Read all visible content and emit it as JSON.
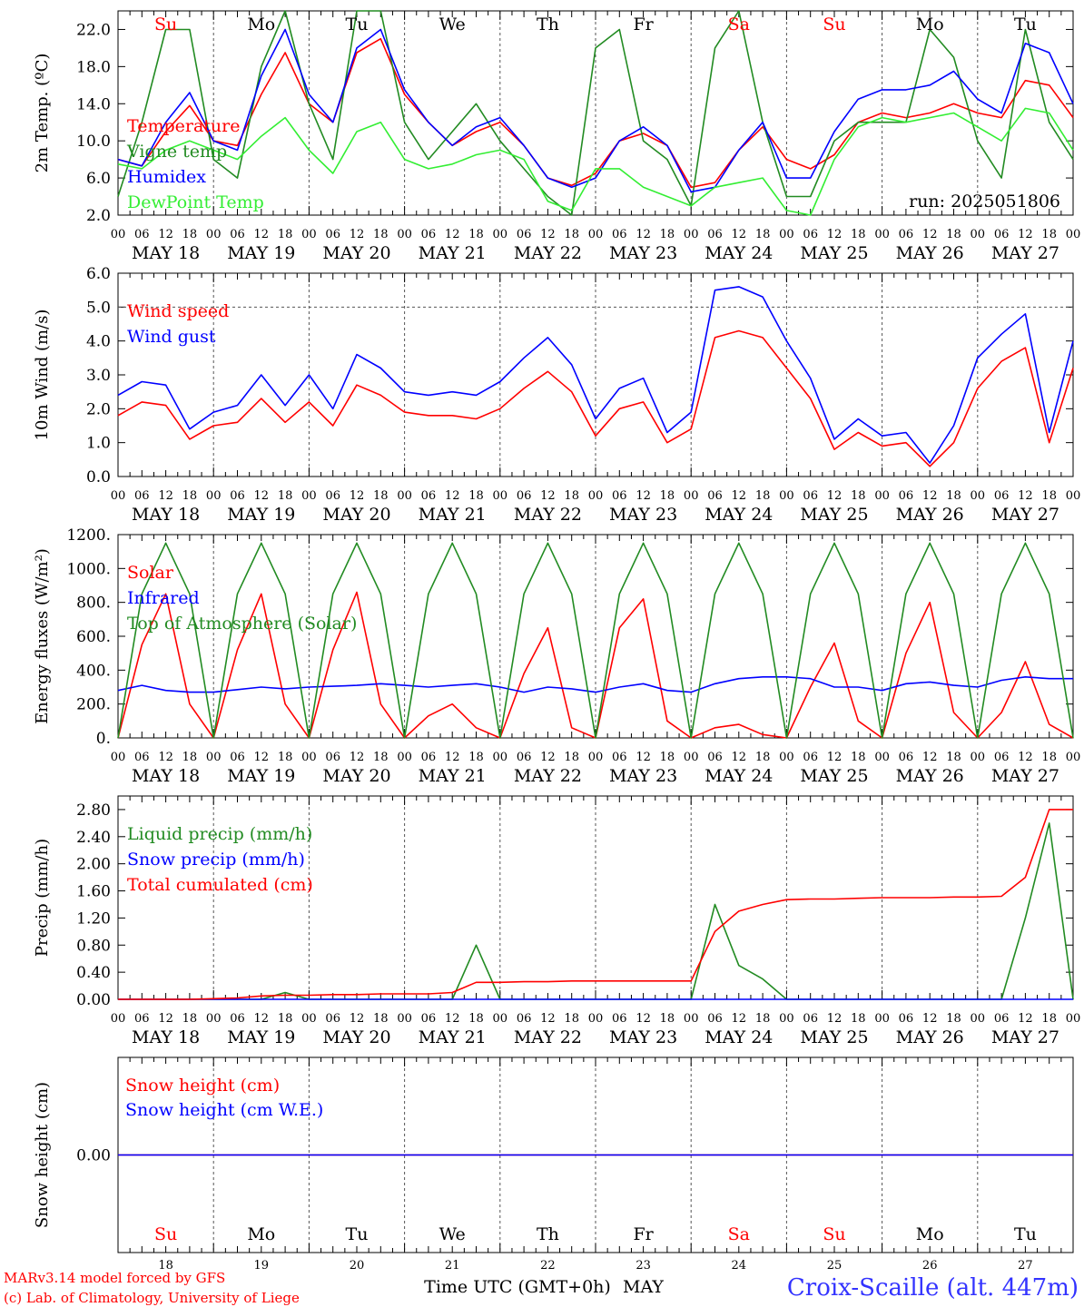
{
  "chart_data": [
    {
      "type": "line",
      "ylabel": "2m Temp. (ºC)",
      "ylim": [
        2,
        24
      ],
      "yticks": [
        "2.0",
        "6.0",
        "10.0",
        "14.0",
        "18.0",
        "22.0"
      ],
      "x": [
        0,
        6,
        12,
        18,
        24,
        30,
        36,
        42,
        48,
        54,
        60,
        66,
        72,
        78,
        84,
        90,
        96,
        102,
        108,
        114,
        120,
        126,
        132,
        138,
        144,
        150,
        156,
        162,
        168,
        174,
        180,
        186,
        192,
        198,
        204,
        210,
        216,
        222,
        228,
        234,
        240
      ],
      "series": [
        {
          "name": "Temperature",
          "color": "#ff0000",
          "values": [
            8,
            7.3,
            11,
            13.8,
            10,
            9.5,
            15,
            19.5,
            14,
            12,
            19.5,
            21,
            15,
            12,
            9.5,
            11,
            12,
            9.5,
            6,
            5.2,
            6.5,
            10,
            10.8,
            9.5,
            5,
            5.5,
            9,
            11.5,
            8,
            7,
            8.5,
            12,
            13,
            12.5,
            13,
            14,
            13,
            12.5,
            16.5,
            16,
            12.5
          ]
        },
        {
          "name": "Vigne temp",
          "color": "#228b22",
          "values": [
            4,
            12,
            22,
            22,
            8,
            6,
            18,
            24,
            14,
            8,
            24,
            24,
            12,
            8,
            11,
            14,
            10,
            7,
            4,
            2,
            20,
            22,
            10,
            8,
            3,
            20,
            24,
            12,
            4,
            4,
            10,
            12,
            12,
            12,
            22,
            19,
            10,
            6,
            22,
            12,
            8
          ]
        },
        {
          "name": "Humidex",
          "color": "#0000ff",
          "values": [
            8,
            7.3,
            12,
            15.2,
            10,
            9,
            17,
            22,
            15,
            12,
            20,
            22,
            15.5,
            12,
            9.5,
            11.5,
            12.5,
            9.5,
            6,
            5,
            6,
            10,
            11.5,
            9.5,
            4.5,
            5,
            9,
            12,
            6,
            6,
            11,
            14.5,
            15.5,
            15.5,
            16,
            17.5,
            14.5,
            13,
            20.5,
            19.5,
            14
          ]
        },
        {
          "name": "DewPoint Temp",
          "color": "#33ee33",
          "values": [
            7.5,
            7,
            9,
            10,
            9,
            8,
            10.5,
            12.5,
            9,
            6.5,
            11,
            12,
            8,
            7,
            7.5,
            8.5,
            9,
            8,
            3.5,
            2.5,
            7,
            7,
            5,
            4,
            3,
            5,
            5.5,
            6,
            2.5,
            2,
            8,
            11.5,
            12.5,
            12,
            12.5,
            13,
            11.5,
            10,
            13.5,
            13,
            9
          ]
        }
      ],
      "annotation": "run: 2025051806"
    },
    {
      "type": "line",
      "ylabel": "10m Wind (m/s)",
      "ylim": [
        0,
        6
      ],
      "yticks": [
        "0.0",
        "1.0",
        "2.0",
        "3.0",
        "4.0",
        "5.0",
        "6.0"
      ],
      "reference_line": 5,
      "x": [
        0,
        6,
        12,
        18,
        24,
        30,
        36,
        42,
        48,
        54,
        60,
        66,
        72,
        78,
        84,
        90,
        96,
        102,
        108,
        114,
        120,
        126,
        132,
        138,
        144,
        150,
        156,
        162,
        168,
        174,
        180,
        186,
        192,
        198,
        204,
        210,
        216,
        222,
        228,
        234,
        240
      ],
      "series": [
        {
          "name": "Wind speed",
          "color": "#ff0000",
          "values": [
            1.8,
            2.2,
            2.1,
            1.1,
            1.5,
            1.6,
            2.3,
            1.6,
            2.2,
            1.5,
            2.7,
            2.4,
            1.9,
            1.8,
            1.8,
            1.7,
            2.0,
            2.6,
            3.1,
            2.5,
            1.2,
            2.0,
            2.2,
            1.0,
            1.4,
            4.1,
            4.3,
            4.1,
            3.2,
            2.3,
            0.8,
            1.3,
            0.9,
            1.0,
            0.3,
            1.0,
            2.6,
            3.4,
            3.8,
            1.0,
            3.2
          ]
        },
        {
          "name": "Wind gust",
          "color": "#0000ff",
          "values": [
            2.4,
            2.8,
            2.7,
            1.4,
            1.9,
            2.1,
            3.0,
            2.1,
            3.0,
            2.0,
            3.6,
            3.2,
            2.5,
            2.4,
            2.5,
            2.4,
            2.8,
            3.5,
            4.1,
            3.3,
            1.7,
            2.6,
            2.9,
            1.3,
            1.9,
            5.5,
            5.6,
            5.3,
            4.0,
            2.9,
            1.1,
            1.7,
            1.2,
            1.3,
            0.4,
            1.5,
            3.5,
            4.2,
            4.8,
            1.3,
            4.0
          ]
        }
      ]
    },
    {
      "type": "line",
      "ylabel": "Energy fluxes (W/m²)",
      "ylim": [
        0,
        1200
      ],
      "yticks": [
        "0.",
        "200.",
        "400.",
        "600.",
        "800.",
        "1000.",
        "1200."
      ],
      "x": [
        0,
        6,
        12,
        18,
        24,
        30,
        36,
        42,
        48,
        54,
        60,
        66,
        72,
        78,
        84,
        90,
        96,
        102,
        108,
        114,
        120,
        126,
        132,
        138,
        144,
        150,
        156,
        162,
        168,
        174,
        180,
        186,
        192,
        198,
        204,
        210,
        216,
        222,
        228,
        234,
        240
      ],
      "series": [
        {
          "name": "Solar",
          "color": "#ff0000",
          "values": [
            0,
            550,
            850,
            200,
            0,
            520,
            850,
            200,
            0,
            520,
            860,
            200,
            0,
            130,
            200,
            60,
            0,
            380,
            650,
            60,
            0,
            650,
            820,
            100,
            0,
            60,
            80,
            20,
            0,
            300,
            560,
            100,
            0,
            500,
            800,
            150,
            0,
            150,
            450,
            80,
            0
          ]
        },
        {
          "name": "Infrared",
          "color": "#0000ff",
          "values": [
            280,
            310,
            280,
            270,
            270,
            285,
            300,
            290,
            300,
            305,
            310,
            320,
            310,
            300,
            310,
            320,
            300,
            270,
            300,
            290,
            270,
            300,
            320,
            280,
            270,
            320,
            350,
            360,
            360,
            350,
            300,
            300,
            280,
            320,
            330,
            310,
            300,
            340,
            360,
            350,
            350
          ]
        },
        {
          "name": "Top of Atmosphere (Solar)",
          "color": "#228b22",
          "values": [
            0,
            850,
            1150,
            850,
            0,
            850,
            1150,
            850,
            0,
            850,
            1150,
            850,
            0,
            850,
            1150,
            850,
            0,
            850,
            1150,
            850,
            0,
            850,
            1150,
            850,
            0,
            850,
            1150,
            850,
            0,
            850,
            1150,
            850,
            0,
            850,
            1150,
            850,
            0,
            850,
            1150,
            850,
            0
          ]
        }
      ]
    },
    {
      "type": "line",
      "ylabel": "Precip (mm/h)",
      "ylim": [
        0,
        3
      ],
      "yticks": [
        "0.00",
        "0.40",
        "0.80",
        "1.20",
        "1.60",
        "2.00",
        "2.40",
        "2.80"
      ],
      "x": [
        0,
        6,
        12,
        18,
        24,
        30,
        36,
        42,
        48,
        54,
        60,
        66,
        72,
        78,
        84,
        90,
        96,
        102,
        108,
        114,
        120,
        126,
        132,
        138,
        144,
        150,
        156,
        162,
        168,
        174,
        180,
        186,
        192,
        198,
        204,
        210,
        216,
        222,
        228,
        234,
        240
      ],
      "series": [
        {
          "name": "Liquid precip (mm/h)",
          "color": "#228b22",
          "values": [
            0,
            0,
            0,
            0,
            0,
            0,
            0,
            0.1,
            0,
            0,
            0,
            0,
            0,
            0,
            0,
            0.8,
            0,
            0,
            0,
            0,
            0,
            0,
            0,
            0,
            0,
            1.4,
            0.5,
            0.3,
            0,
            0,
            0,
            0,
            0,
            0,
            0,
            0,
            0,
            0,
            1.2,
            2.6,
            0
          ]
        },
        {
          "name": "Snow precip (mm/h)",
          "color": "#0000ff",
          "values": [
            0,
            0,
            0,
            0,
            0,
            0,
            0,
            0,
            0,
            0,
            0,
            0,
            0,
            0,
            0,
            0,
            0,
            0,
            0,
            0,
            0,
            0,
            0,
            0,
            0,
            0,
            0,
            0,
            0,
            0,
            0,
            0,
            0,
            0,
            0,
            0,
            0,
            0,
            0,
            0,
            0
          ]
        },
        {
          "name": "Total cumulated (cm)",
          "color": "#ff0000",
          "values": [
            0,
            0,
            0,
            0,
            0.01,
            0.02,
            0.05,
            0.06,
            0.06,
            0.07,
            0.07,
            0.08,
            0.08,
            0.08,
            0.1,
            0.25,
            0.25,
            0.26,
            0.26,
            0.27,
            0.27,
            0.27,
            0.27,
            0.27,
            0.27,
            1.0,
            1.3,
            1.4,
            1.47,
            1.48,
            1.48,
            1.49,
            1.5,
            1.5,
            1.5,
            1.51,
            1.51,
            1.52,
            1.8,
            2.8,
            2.8
          ]
        }
      ]
    },
    {
      "type": "line",
      "ylabel": "Snow height (cm)",
      "ylim": [
        -1,
        1
      ],
      "yticks": [
        "0.00"
      ],
      "x": [
        0,
        240
      ],
      "series": [
        {
          "name": "Snow height (cm)",
          "color": "#ff0000",
          "values": [
            0,
            0
          ]
        },
        {
          "name": "Snow height (cm W.E.)",
          "color": "#0000ff",
          "values": [
            0,
            0
          ]
        }
      ]
    }
  ],
  "axis": {
    "hour_labels": [
      "00",
      "06",
      "12",
      "18"
    ],
    "final_hour_label": "00",
    "dates": [
      "MAY 18",
      "MAY 19",
      "MAY 20",
      "MAY 21",
      "MAY 22",
      "MAY 23",
      "MAY 24",
      "MAY 25",
      "MAY 26",
      "MAY 27"
    ],
    "weekdays": [
      {
        "label": "Su",
        "color": "#ff0000"
      },
      {
        "label": "Mo",
        "color": "#000000"
      },
      {
        "label": "Tu",
        "color": "#000000"
      },
      {
        "label": "We",
        "color": "#000000"
      },
      {
        "label": "Th",
        "color": "#000000"
      },
      {
        "label": "Fr",
        "color": "#000000"
      },
      {
        "label": "Sa",
        "color": "#ff0000"
      },
      {
        "label": "Su",
        "color": "#ff0000"
      },
      {
        "label": "Mo",
        "color": "#000000"
      },
      {
        "label": "Tu",
        "color": "#000000"
      }
    ],
    "day_numbers": [
      "18",
      "19",
      "20",
      "21",
      "22",
      "23",
      "24",
      "25",
      "26",
      "27"
    ],
    "xlabel": "Time UTC (GMT+0h)",
    "month": "MAY"
  },
  "footer": {
    "credit_line1": "MARv3.14 model forced by GFS",
    "credit_line2": "(c) Lab. of Climatology, University of Liege",
    "station": "Croix-Scaille (alt. 447m)"
  }
}
